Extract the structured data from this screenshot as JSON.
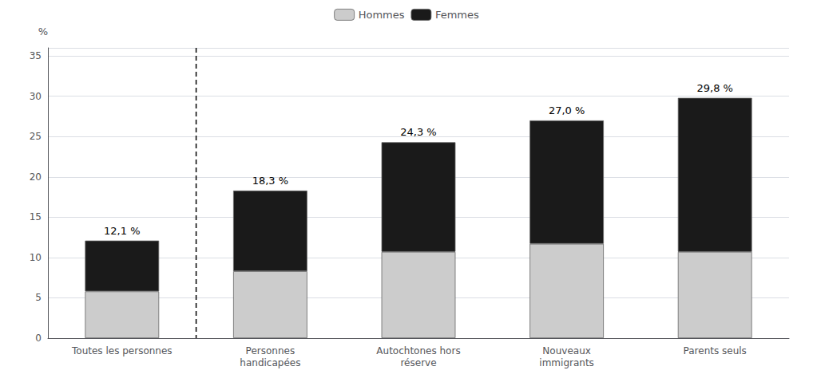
{
  "chart_data": {
    "type": "bar",
    "stacked": true,
    "ylabel": "%",
    "categories": [
      "Toutes les personnes",
      "Personnes\nhandicapées",
      "Autochtones hors\nréserve",
      "Nouveaux\nimmigrants",
      "Parents seuls"
    ],
    "series": [
      {
        "name": "Hommes",
        "color": "#cccccc",
        "values": [
          5.8,
          8.3,
          10.7,
          11.7,
          10.7
        ]
      },
      {
        "name": "Femmes",
        "color": "#1a1a1a",
        "values": [
          6.3,
          10.0,
          13.6,
          15.3,
          19.1
        ]
      }
    ],
    "ylim": [
      0,
      36
    ],
    "yticks": [
      0,
      5,
      10,
      15,
      20,
      25,
      30,
      35
    ],
    "grid": true,
    "legend": "top",
    "annotations": [
      {
        "text": "12,1 %",
        "x": "Toutes les personnes",
        "y": 12.1
      },
      {
        "text": "18,3 %",
        "x": "Personnes\nhandicapées",
        "y": 18.3
      },
      {
        "text": "24,3 %",
        "x": "Autochtones hors\nréserve",
        "y": 24.3
      },
      {
        "text": "27,0 %",
        "x": "Nouveaux\nimmigrants",
        "y": 27.0
      },
      {
        "text": "29,8 %",
        "x": "Parents seuls",
        "y": 29.8
      },
      {
        "type": "vline",
        "between": [
          "Toutes les personnes",
          "Personnes\nhandicapées"
        ],
        "line_style": "dashed"
      }
    ]
  }
}
